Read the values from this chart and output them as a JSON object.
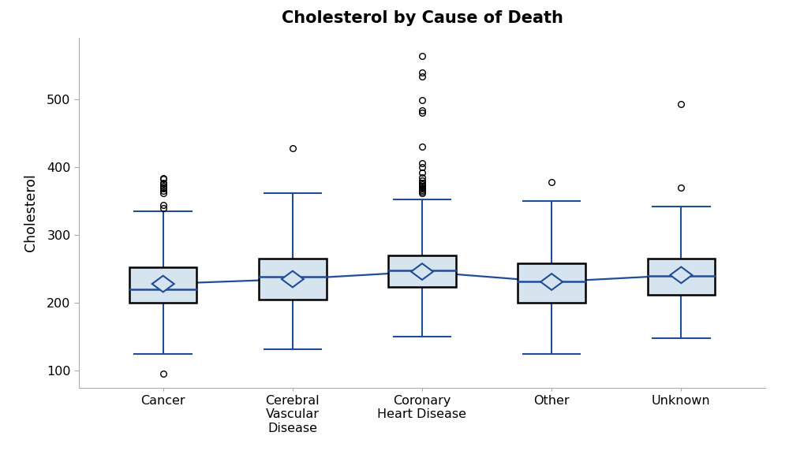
{
  "title": "Cholesterol by Cause of Death",
  "ylabel": "Cholesterol",
  "categories": [
    "Cancer",
    "Cerebral\nVascular\nDisease",
    "Coronary\nHeart Disease",
    "Other",
    "Unknown"
  ],
  "fig_bg_color": "#ffffff",
  "plot_bg_color": "#ffffff",
  "box_fill_color": "#d6e4f0",
  "box_edge_color": "#000000",
  "whisker_color": "#1f4e96",
  "median_color": "#1f4e96",
  "mean_line_color": "#1f4e96",
  "diamond_fill": "#d6e4f0",
  "diamond_edge": "#1f4e96",
  "outlier_color": "#000000",
  "ylim": [
    75,
    590
  ],
  "yticks": [
    100,
    200,
    300,
    400,
    500
  ],
  "box_width": 0.52,
  "boxes": [
    {
      "q1": 200,
      "median": 220,
      "q3": 253,
      "mean": 228,
      "whisker_low": 125,
      "whisker_high": 335,
      "outliers": [
        96,
        340,
        344,
        362,
        365,
        368,
        370,
        372,
        375,
        377,
        382,
        384
      ]
    },
    {
      "q1": 205,
      "median": 238,
      "q3": 265,
      "mean": 235,
      "whisker_low": 132,
      "whisker_high": 362,
      "outliers": [
        428
      ]
    },
    {
      "q1": 224,
      "median": 248,
      "q3": 270,
      "mean": 246,
      "whisker_low": 150,
      "whisker_high": 352,
      "outliers": [
        362,
        364,
        366,
        368,
        370,
        372,
        374,
        376,
        380,
        385,
        392,
        400,
        406,
        430,
        480,
        483,
        498,
        533,
        539,
        563
      ]
    },
    {
      "q1": 200,
      "median": 232,
      "q3": 258,
      "mean": 231,
      "whisker_low": 125,
      "whisker_high": 350,
      "outliers": [
        378
      ]
    },
    {
      "q1": 212,
      "median": 240,
      "q3": 265,
      "mean": 241,
      "whisker_low": 148,
      "whisker_high": 342,
      "outliers": [
        370,
        492
      ]
    }
  ],
  "means": [
    228,
    235,
    246,
    231,
    241
  ]
}
